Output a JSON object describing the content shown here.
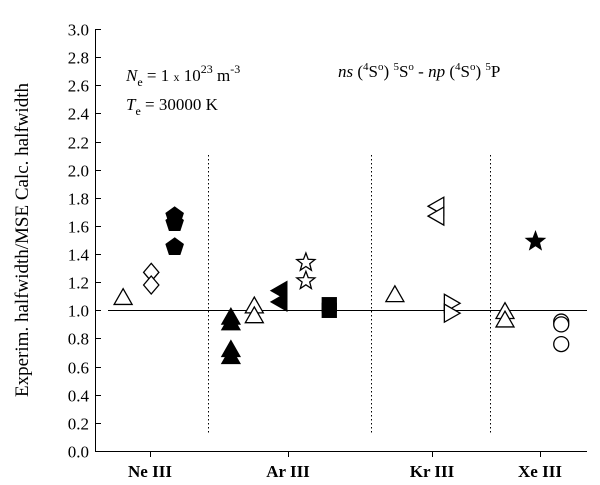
{
  "chart_data": {
    "type": "scatter",
    "ylabel": "Experim. halfwidth/MSE Calc. halfwidth",
    "xlabel": "",
    "ylim": [
      0.0,
      3.0
    ],
    "yticks": [
      "0.0",
      "0.2",
      "0.4",
      "0.6",
      "0.8",
      "1.0",
      "1.2",
      "1.4",
      "1.6",
      "1.8",
      "2.0",
      "2.2",
      "2.4",
      "2.6",
      "2.8",
      "3.0"
    ],
    "categories": [
      "Ne III",
      "Ar III",
      "Kr III",
      "Xe III"
    ],
    "reference_line": 1.0,
    "grid": false,
    "annotations": {
      "density_sym": "N",
      "density_sub": "e",
      "density_eq": " = 1 ",
      "density_x": "x",
      "density_base": " 10",
      "density_exp": "23",
      "density_unit": " m",
      "density_unit_exp": "-3",
      "temp_sym": "T",
      "temp_sub": "e",
      "temp_val": " = 30000 K",
      "trans_ns": "ns",
      "trans_p1": " (",
      "trans_4a": "4",
      "trans_s1": "S",
      "trans_o1": "o",
      "trans_p2": ") ",
      "trans_5a": "5",
      "trans_s2": "S",
      "trans_o2": "o",
      "trans_dash": " - ",
      "trans_np": "np",
      "trans_p3": " (",
      "trans_4b": "4",
      "trans_s3": "S",
      "trans_o3": "o",
      "trans_p4": ") ",
      "trans_5b": "5",
      "trans_P": "P"
    },
    "series": [
      {
        "marker": "triangle-up-open",
        "points": [
          {
            "x": 0.6,
            "y": 1.09
          }
        ]
      },
      {
        "marker": "diamond-open",
        "points": [
          {
            "x": 1.2,
            "y": 1.27
          },
          {
            "x": 1.2,
            "y": 1.18
          }
        ]
      },
      {
        "marker": "pentagon-filled",
        "points": [
          {
            "x": 1.7,
            "y": 1.67
          },
          {
            "x": 1.7,
            "y": 1.62
          },
          {
            "x": 1.7,
            "y": 1.45
          }
        ]
      },
      {
        "marker": "triangle-up-filled",
        "points": [
          {
            "x": 2.9,
            "y": 0.95
          },
          {
            "x": 2.9,
            "y": 0.91
          },
          {
            "x": 2.9,
            "y": 0.72
          },
          {
            "x": 2.9,
            "y": 0.67
          }
        ]
      },
      {
        "marker": "triangle-up-open",
        "points": [
          {
            "x": 3.4,
            "y": 1.03
          },
          {
            "x": 3.4,
            "y": 0.96
          }
        ]
      },
      {
        "marker": "triangle-left-filled",
        "points": [
          {
            "x": 3.95,
            "y": 1.14
          },
          {
            "x": 3.95,
            "y": 1.06
          }
        ]
      },
      {
        "marker": "star-open",
        "points": [
          {
            "x": 4.5,
            "y": 1.34
          },
          {
            "x": 4.5,
            "y": 1.21
          }
        ]
      },
      {
        "marker": "square-filled",
        "points": [
          {
            "x": 5.0,
            "y": 1.04
          },
          {
            "x": 5.0,
            "y": 1.0
          }
        ]
      },
      {
        "marker": "triangle-up-open",
        "points": [
          {
            "x": 6.4,
            "y": 1.11
          }
        ]
      },
      {
        "marker": "triangle-left-open",
        "points": [
          {
            "x": 7.3,
            "y": 1.74
          },
          {
            "x": 7.3,
            "y": 1.67
          }
        ]
      },
      {
        "marker": "triangle-right-open",
        "points": [
          {
            "x": 7.6,
            "y": 1.05
          },
          {
            "x": 7.6,
            "y": 0.98
          }
        ]
      },
      {
        "marker": "triangle-up-open",
        "points": [
          {
            "x": 8.75,
            "y": 0.99
          },
          {
            "x": 8.75,
            "y": 0.93
          }
        ]
      },
      {
        "marker": "star-filled",
        "points": [
          {
            "x": 9.4,
            "y": 1.49
          }
        ]
      },
      {
        "marker": "circle-open",
        "points": [
          {
            "x": 9.95,
            "y": 0.92
          },
          {
            "x": 9.95,
            "y": 0.9
          },
          {
            "x": 9.95,
            "y": 0.76
          }
        ]
      }
    ]
  }
}
